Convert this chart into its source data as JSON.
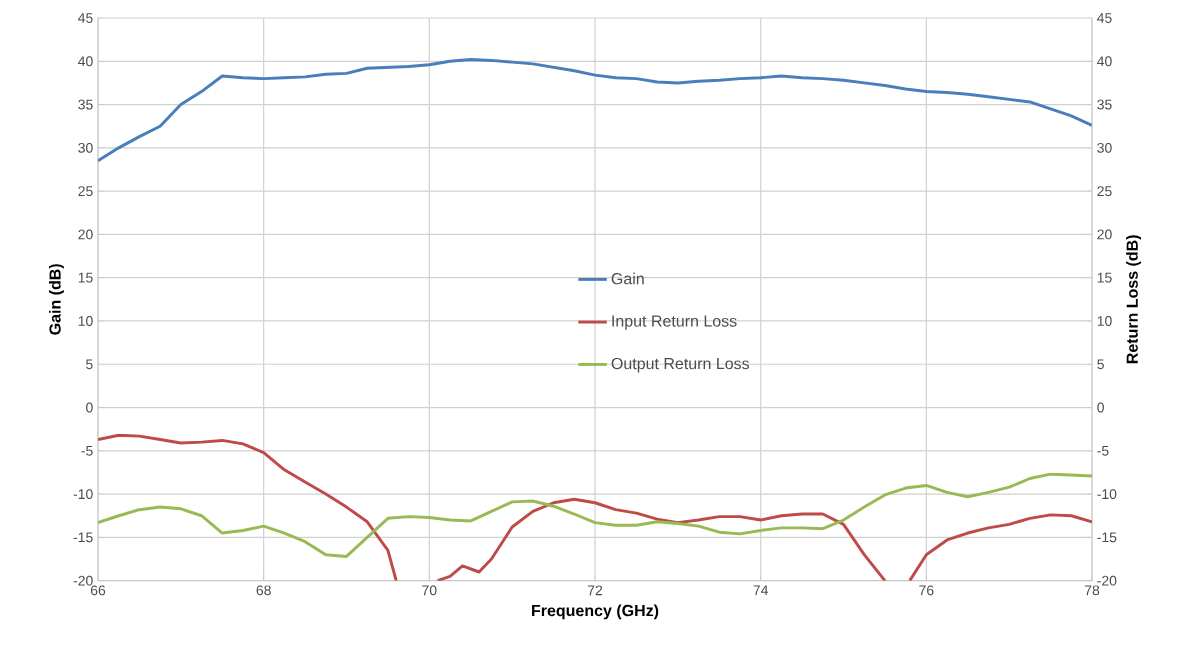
{
  "chart_data": {
    "type": "line",
    "xlabel": "Frequency (GHz)",
    "ylabel": "Gain (dB)",
    "y2label": "Return Loss (dB)",
    "xlim": [
      66,
      78
    ],
    "xticks": [
      66,
      68,
      70,
      72,
      74,
      76,
      78
    ],
    "ylim": [
      -20,
      45
    ],
    "yticks": [
      -20,
      -15,
      -10,
      -5,
      0,
      5,
      10,
      15,
      20,
      25,
      30,
      35,
      40,
      45
    ],
    "y2lim": [
      -20,
      45
    ],
    "y2ticks": [
      -20,
      -15,
      -10,
      -5,
      0,
      5,
      10,
      15,
      20,
      25,
      30,
      35,
      40,
      45
    ],
    "grid": true,
    "legend": "center",
    "marker": "none",
    "line_style": "solid",
    "x": [
      66,
      66.25,
      66.5,
      66.75,
      67,
      67.25,
      67.5,
      67.75,
      68,
      68.25,
      68.5,
      68.75,
      69,
      69.25,
      69.5,
      69.75,
      70,
      70.25,
      70.5,
      70.75,
      71,
      71.25,
      71.5,
      71.75,
      72,
      72.25,
      72.5,
      72.75,
      73,
      73.25,
      73.5,
      73.75,
      74,
      74.25,
      74.5,
      74.75,
      75,
      75.25,
      75.5,
      75.75,
      76,
      76.25,
      76.5,
      76.75,
      77,
      77.25,
      77.5,
      77.75,
      78
    ],
    "series": [
      {
        "name": "Gain",
        "color": "#4a7ebb",
        "values": [
          28.5,
          30,
          31.3,
          32.5,
          35,
          36.5,
          38.3,
          38.1,
          38,
          38.1,
          38.2,
          38.5,
          38.6,
          39.2,
          39.3,
          39.4,
          39.6,
          40,
          40.2,
          40.1,
          39.9,
          39.7,
          39.3,
          38.9,
          38.4,
          38.1,
          38,
          37.6,
          37.5,
          37.7,
          37.8,
          38,
          38.1,
          38.3,
          38.1,
          38,
          37.8,
          37.5,
          37.2,
          36.8,
          36.5,
          36.4,
          36.2,
          35.9,
          35.6,
          35.3,
          34.5,
          33.7,
          32.6
        ]
      },
      {
        "name": "Input Return Loss",
        "color": "#be4b48",
        "axis": "y2",
        "x": [
          66,
          66.25,
          66.5,
          66.75,
          67,
          67.25,
          67.5,
          67.75,
          68,
          68.25,
          68.5,
          68.75,
          69,
          69.25,
          69.5,
          69.6,
          69.85,
          70.1,
          70.25,
          70.4,
          70.6,
          70.75,
          71,
          71.25,
          71.5,
          71.75,
          72,
          72.25,
          72.5,
          72.75,
          73,
          73.25,
          73.5,
          73.75,
          74,
          74.25,
          74.5,
          74.75,
          75,
          75.25,
          75.5,
          75.65,
          75.8,
          76,
          76.25,
          76.5,
          76.75,
          77,
          77.25,
          77.5,
          77.75,
          78
        ],
        "values": [
          -3.7,
          -3.2,
          -3.3,
          -3.7,
          -4.1,
          -4,
          -3.8,
          -4.2,
          -5.2,
          -7.2,
          -8.6,
          -10,
          -11.5,
          -13.2,
          -16.5,
          -20,
          null,
          -20,
          -19.5,
          -18.3,
          -19,
          -17.5,
          -13.8,
          -12,
          -11,
          -10.6,
          -11,
          -11.8,
          -12.2,
          -12.9,
          -13.3,
          -13,
          -12.6,
          -12.6,
          -13,
          -12.5,
          -12.3,
          -12.3,
          -13.5,
          -17,
          -20,
          null,
          -20,
          -17,
          -15.3,
          -14.5,
          -13.9,
          -13.5,
          -12.8,
          -12.4,
          -12.5,
          -13.2
        ]
      },
      {
        "name": "Output Return Loss",
        "color": "#98b954",
        "axis": "y2",
        "values": [
          -13.3,
          -12.5,
          -11.8,
          -11.5,
          -11.7,
          -12.5,
          -14.5,
          -14.2,
          -13.7,
          -14.5,
          -15.5,
          -17,
          -17.2,
          -15,
          -12.8,
          -12.6,
          -12.7,
          -13,
          -13.1,
          -12,
          -10.9,
          -10.8,
          -11.4,
          -12.3,
          -13.3,
          -13.6,
          -13.6,
          -13.2,
          -13.4,
          -13.7,
          -14.4,
          -14.6,
          -14.2,
          -13.9,
          -13.9,
          -14,
          -13,
          -11.5,
          -10.1,
          -9.3,
          -9,
          -9.8,
          -10.3,
          -9.8,
          -9.2,
          -8.2,
          -7.7,
          -7.8,
          -7.9
        ]
      }
    ]
  }
}
